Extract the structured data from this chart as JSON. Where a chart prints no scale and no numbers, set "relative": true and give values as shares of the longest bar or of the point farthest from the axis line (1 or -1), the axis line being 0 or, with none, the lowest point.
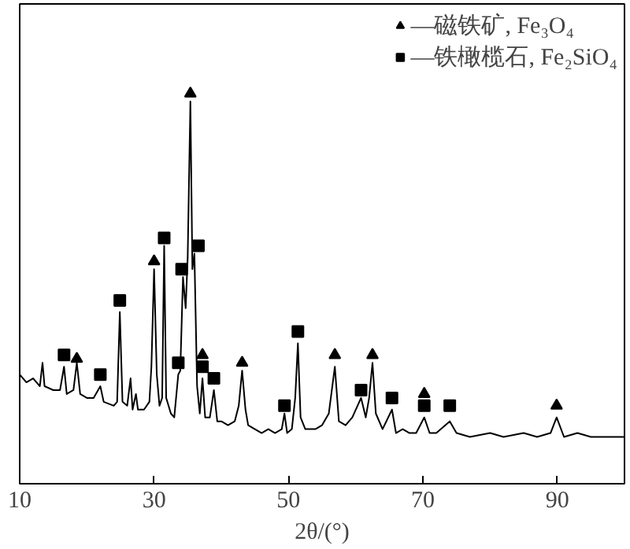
{
  "chart_data": {
    "type": "line",
    "relative": true,
    "xlabel": "2θ/(°)",
    "xlim": [
      10,
      100
    ],
    "xticks": [
      10,
      30,
      50,
      70,
      90
    ],
    "grid": false,
    "legend": "top right",
    "series": [
      {
        "color": "#000000",
        "x": [
          10,
          11,
          12,
          13,
          13.4,
          13.7,
          15,
          16,
          16.6,
          17,
          18,
          18.5,
          19,
          20,
          21,
          22,
          22.5,
          24,
          24.5,
          24.9,
          25.3,
          26,
          26.5,
          26.8,
          27.3,
          27.6,
          28.5,
          29.3,
          29.6,
          30.0,
          30.4,
          30.8,
          31.2,
          31.5,
          31.8,
          32.5,
          33,
          33.6,
          33.9,
          34.3,
          34.7,
          35.0,
          35.4,
          35.7,
          36.0,
          36.4,
          36.8,
          37.2,
          37.6,
          38.3,
          38.9,
          39.4,
          40,
          41,
          42,
          42.6,
          43.1,
          43.6,
          44,
          45,
          46,
          47,
          48,
          49,
          49.4,
          49.8,
          50.5,
          51,
          51.4,
          51.8,
          52.5,
          54,
          55,
          56,
          56.9,
          57.5,
          58.5,
          59.5,
          60.8,
          61.5,
          62,
          62.5,
          63,
          64,
          65.4,
          66,
          67,
          68,
          69,
          70.2,
          71,
          72,
          74,
          75,
          77,
          80,
          82,
          85,
          87,
          89,
          89.9,
          91,
          93,
          95,
          97,
          100
        ],
        "values": [
          0.28,
          0.26,
          0.27,
          0.25,
          0.31,
          0.25,
          0.24,
          0.24,
          0.3,
          0.23,
          0.24,
          0.31,
          0.23,
          0.22,
          0.22,
          0.25,
          0.21,
          0.2,
          0.21,
          0.44,
          0.21,
          0.2,
          0.27,
          0.19,
          0.23,
          0.19,
          0.19,
          0.21,
          0.3,
          0.55,
          0.28,
          0.2,
          0.22,
          0.61,
          0.22,
          0.18,
          0.17,
          0.28,
          0.29,
          0.53,
          0.45,
          0.58,
          0.98,
          0.55,
          0.59,
          0.25,
          0.18,
          0.27,
          0.17,
          0.17,
          0.24,
          0.16,
          0.16,
          0.15,
          0.16,
          0.2,
          0.29,
          0.19,
          0.15,
          0.14,
          0.13,
          0.14,
          0.13,
          0.14,
          0.18,
          0.13,
          0.14,
          0.22,
          0.36,
          0.17,
          0.14,
          0.14,
          0.15,
          0.18,
          0.3,
          0.16,
          0.15,
          0.17,
          0.22,
          0.17,
          0.22,
          0.31,
          0.18,
          0.14,
          0.19,
          0.13,
          0.14,
          0.13,
          0.13,
          0.17,
          0.13,
          0.13,
          0.16,
          0.13,
          0.12,
          0.13,
          0.12,
          0.13,
          0.12,
          0.13,
          0.17,
          0.12,
          0.13,
          0.12,
          0.12,
          0.12
        ]
      },
      {
        "type": "scatter",
        "name": "—磁铁矿, Fe₃O₄",
        "marker": "triangle",
        "color": "#000000",
        "x": [
          18.5,
          30.0,
          35.4,
          37.2,
          43.1,
          56.9,
          62.5,
          70.2,
          89.9
        ],
        "values": [
          0.32,
          0.57,
          1.0,
          0.33,
          0.31,
          0.33,
          0.33,
          0.23,
          0.2
        ]
      },
      {
        "type": "scatter",
        "name": "—铁橄榄石, Fe₂SiO₄",
        "marker": "square",
        "color": "#000000",
        "x": [
          16.6,
          22.0,
          24.9,
          31.5,
          33.6,
          34.1,
          36.6,
          37.2,
          38.9,
          49.4,
          51.4,
          60.8,
          65.4,
          70.2,
          74.0
        ],
        "values": [
          0.33,
          0.28,
          0.47,
          0.63,
          0.31,
          0.55,
          0.61,
          0.3,
          0.27,
          0.2,
          0.39,
          0.24,
          0.22,
          0.2,
          0.2
        ]
      }
    ]
  }
}
